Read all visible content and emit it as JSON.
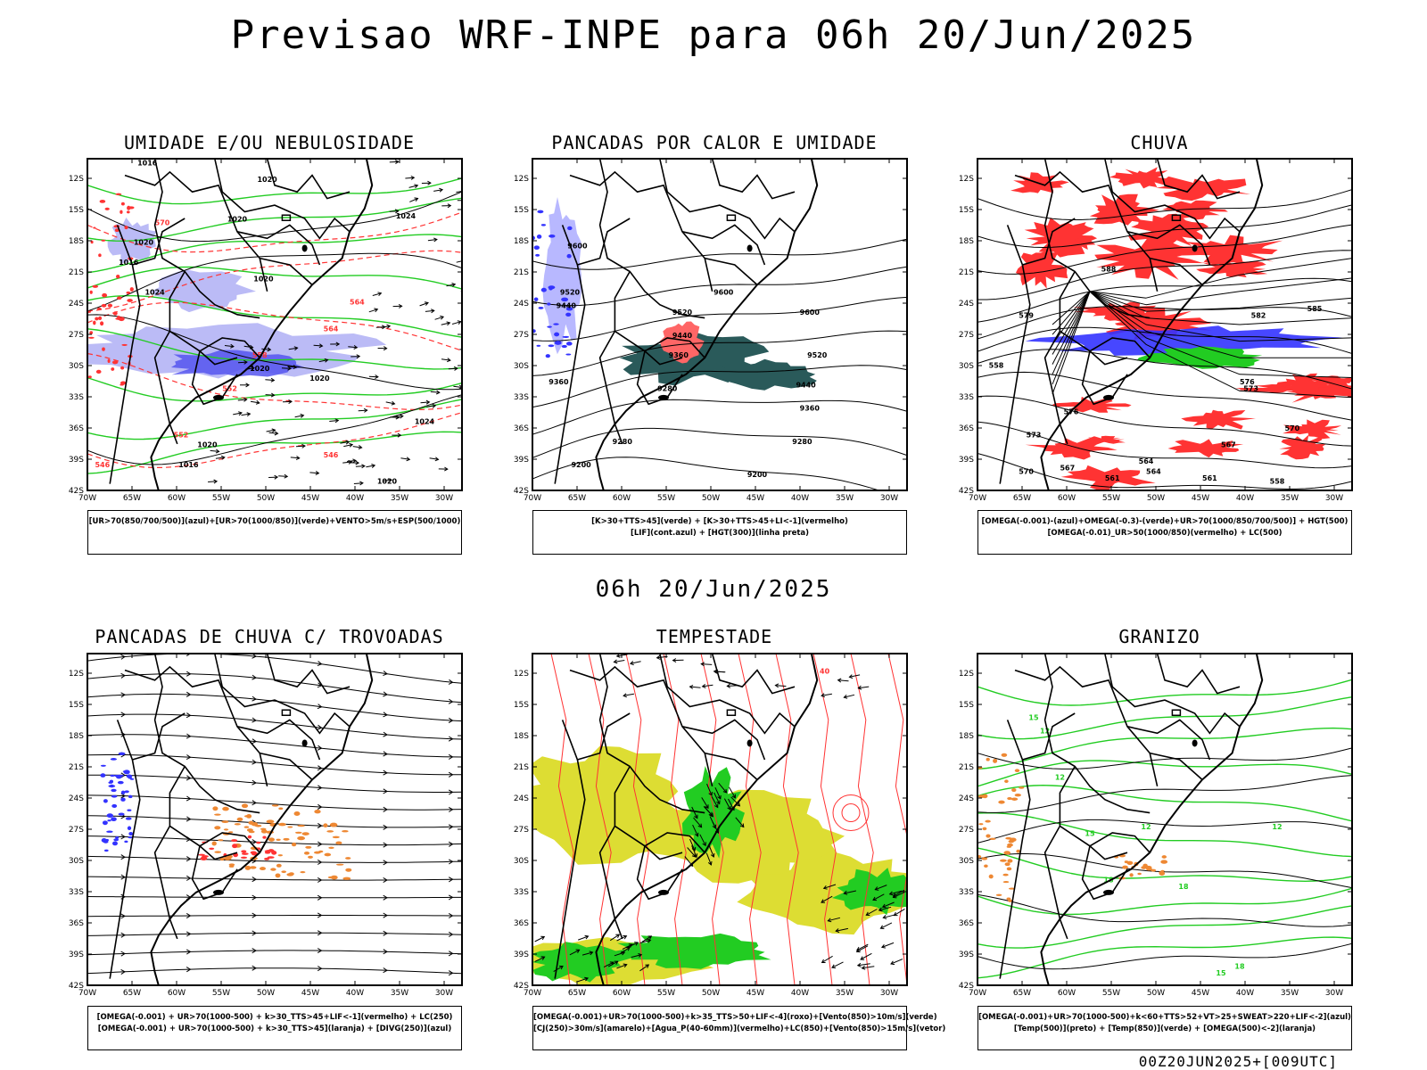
{
  "page": {
    "title": "Previsao WRF-INPE  para 06h 20/Jun/2025",
    "middle_title": "06h 20/Jun/2025",
    "footer": "00Z20JUN2025+[009UTC]"
  },
  "axes": {
    "lat_ticks": [
      "12S",
      "15S",
      "18S",
      "21S",
      "24S",
      "27S",
      "30S",
      "33S",
      "36S",
      "39S",
      "42S"
    ],
    "lon_ticks": [
      "70W",
      "65W",
      "60W",
      "55W",
      "50W",
      "45W",
      "40W",
      "35W",
      "30W"
    ]
  },
  "colors": {
    "blue": "#3333ff",
    "lightblue": "#b4b4f5",
    "green": "#22cc22",
    "red": "#ff3333",
    "orange": "#ee8833",
    "yellow": "#dddd33",
    "teal": "#2a5a5a",
    "purple": "#cc44cc"
  },
  "panels": [
    {
      "title": "UMIDADE E/OU NEBULOSIDADE",
      "legend": [
        "[UR>70(850/700/500)](azul)+[UR>70(1000/850)](verde)+VENTO>5m/s+ESP(500/1000)"
      ],
      "labels": [
        "1016",
        "1020",
        "1020",
        "1020",
        "1024",
        "1020",
        "1024",
        "1020",
        "1020",
        "1024",
        "1016",
        "1016",
        "1020",
        "1020",
        "570",
        "564",
        "558",
        "552",
        "552",
        "546",
        "546",
        "564"
      ]
    },
    {
      "title": "PANCADAS POR CALOR E UMIDADE",
      "legend": [
        "[K>30+TTS>45](verde) + [K>30+TTS>45+LI<-1](vermelho)",
        "[LIF](cont.azul) + [HGT(300)](linha preta)"
      ],
      "labels": [
        "9600",
        "9520",
        "9440",
        "9600",
        "9600",
        "9520",
        "9440",
        "9360",
        "9280",
        "9360",
        "9280",
        "9280",
        "9200",
        "9200",
        "9520",
        "9440",
        "9360"
      ]
    },
    {
      "title": "CHUVA",
      "legend": [
        "[OMEGA(-0.001)-(azul)+OMEGA(-0.3)-(verde)+UR>70(1000/850/700/500)] + HGT(500)",
        "[OMEGA(-0.01)_UR>50(1000/850)(vermelho) + LC(500)"
      ],
      "labels": [
        "588",
        "585",
        "582",
        "579",
        "576",
        "573",
        "570",
        "567",
        "564",
        "561",
        "558",
        "576",
        "573",
        "570",
        "567",
        "564",
        "561",
        "558"
      ]
    },
    {
      "title": "PANCADAS DE CHUVA C/ TROVOADAS",
      "legend": [
        "[OMEGA(-0.001) + UR>70(1000-500) + k>30_TTS>45+LIF<-1](vermelho) + LC(250)",
        "[OMEGA(-0.001) + UR>70(1000-500) + k>30_TTS>45](laranja) + [DIVG(250)](azul)"
      ],
      "labels": []
    },
    {
      "title": "TEMPESTADE",
      "legend": [
        "[OMEGA(-0.001)+UR>70(1000-500)+k>35_TTS>50+LIF<-4](roxo)+[Vento(850)>10m/s](verde)",
        "[CJ(250)>30m/s](amarelo)+[Agua_P(40-60mm)](vermelho)+LC(850)+[Vento(850)>15m/s](vetor)"
      ],
      "labels": [
        "40"
      ]
    },
    {
      "title": "GRANIZO",
      "legend": [
        "[OMEGA(-0.001)+UR>70(1000-500)+k<60+TTS>52+VT>25+SWEAT>220+LIF<-2](azul)",
        "[Temp(500)](preto) + [Temp(850)](verde) + [OMEGA(500)<-2](laranja)"
      ],
      "labels": [
        "15",
        "12",
        "12",
        "15",
        "12",
        "12",
        "18",
        "18",
        "15",
        "18"
      ]
    }
  ]
}
